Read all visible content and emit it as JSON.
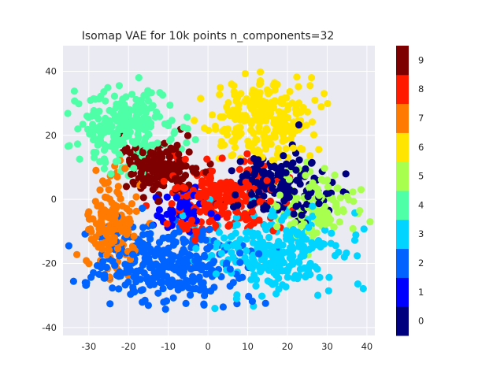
{
  "chart_data": {
    "type": "scatter",
    "title": "Isomap VAE for 10k points n_components=32",
    "xlabel": "",
    "ylabel": "",
    "xlim": [
      -36.5,
      42
    ],
    "ylim": [
      -42.5,
      48
    ],
    "xticks": [
      -30,
      -20,
      -10,
      0,
      10,
      20,
      30,
      40
    ],
    "yticks": [
      -40,
      -20,
      0,
      20,
      40
    ],
    "grid": true,
    "colorbar": {
      "labels": [
        "0",
        "1",
        "2",
        "3",
        "4",
        "5",
        "6",
        "7",
        "8",
        "9"
      ],
      "colors": [
        "#00007f",
        "#0000ff",
        "#0063ff",
        "#00d4ff",
        "#4effa8",
        "#a8ff4e",
        "#ffe500",
        "#ff7a00",
        "#ff1a00",
        "#7f0000"
      ]
    },
    "clusters": [
      {
        "label": "0",
        "center": [
          18,
          4
        ],
        "spread": [
          6,
          5
        ],
        "count": 160
      },
      {
        "label": "1",
        "center": [
          -7,
          -3
        ],
        "spread": [
          4,
          3
        ],
        "count": 60
      },
      {
        "label": "2",
        "center": [
          -10,
          -20
        ],
        "spread": [
          9,
          6
        ],
        "count": 320
      },
      {
        "label": "3",
        "center": [
          17,
          -17
        ],
        "spread": [
          8,
          6
        ],
        "count": 260
      },
      {
        "label": "4",
        "center": [
          -20,
          22
        ],
        "spread": [
          6,
          6
        ],
        "count": 260
      },
      {
        "label": "5",
        "center": [
          27,
          -2
        ],
        "spread": [
          5,
          6
        ],
        "count": 120
      },
      {
        "label": "6",
        "center": [
          14,
          25
        ],
        "spread": [
          6,
          6
        ],
        "count": 260
      },
      {
        "label": "7",
        "center": [
          -24,
          -8
        ],
        "spread": [
          3,
          8
        ],
        "count": 160
      },
      {
        "label": "8",
        "center": [
          3,
          0
        ],
        "spread": [
          7,
          5
        ],
        "count": 240
      },
      {
        "label": "9",
        "center": [
          -12,
          10
        ],
        "spread": [
          5,
          4
        ],
        "count": 180
      }
    ]
  }
}
